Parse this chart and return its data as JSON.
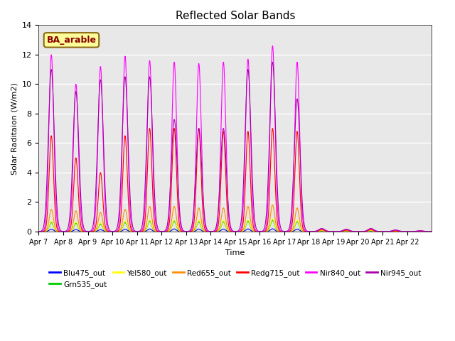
{
  "title": "Reflected Solar Bands",
  "xlabel": "Time",
  "ylabel": "Solar Raditaion (W/m2)",
  "ylim": [
    0,
    14
  ],
  "annotation_text": "BA_arable",
  "annotation_color": "#8B0000",
  "annotation_bg": "#FFFF99",
  "annotation_border": "#8B6914",
  "background_color": "#E8E8E8",
  "series": [
    {
      "label": "Blu475_out",
      "color": "#0000FF"
    },
    {
      "label": "Grn535_out",
      "color": "#00CC00"
    },
    {
      "label": "Yel580_out",
      "color": "#FFFF00"
    },
    {
      "label": "Red655_out",
      "color": "#FF8C00"
    },
    {
      "label": "Redg715_out",
      "color": "#FF0000"
    },
    {
      "label": "Nir840_out",
      "color": "#FF00FF"
    },
    {
      "label": "Nir945_out",
      "color": "#AA00AA"
    }
  ],
  "xtick_positions": [
    0,
    1,
    2,
    3,
    4,
    5,
    6,
    7,
    8,
    9,
    10,
    11,
    12,
    13,
    14,
    15
  ],
  "xtick_labels": [
    "Apr 7",
    "Apr 8",
    "Apr 9",
    "Apr 10",
    "Apr 11",
    "Apr 12",
    "Apr 13",
    "Apr 14",
    "Apr 15",
    "Apr 16",
    "Apr 17",
    "Apr 18",
    "Apr 19",
    "Apr 20",
    "Apr 21",
    "Apr 22"
  ],
  "num_days": 16,
  "points_per_day": 96,
  "nir840_heights": [
    12.0,
    10.0,
    11.2,
    11.9,
    11.6,
    11.5,
    11.4,
    11.5,
    11.7,
    12.6,
    11.5,
    0.2,
    0.15,
    0.2,
    0.1,
    0.05
  ],
  "nir945_heights": [
    11.0,
    9.5,
    10.3,
    10.5,
    10.5,
    7.6,
    7.0,
    7.0,
    11.0,
    11.5,
    9.0,
    0.2,
    0.15,
    0.2,
    0.1,
    0.05
  ],
  "redg715_heights": [
    6.5,
    5.0,
    4.0,
    6.5,
    7.0,
    7.0,
    7.0,
    6.8,
    6.8,
    7.0,
    6.8,
    0.15,
    0.1,
    0.15,
    0.05,
    0.02
  ],
  "red655_heights": [
    1.5,
    1.4,
    1.3,
    1.5,
    1.7,
    1.7,
    1.6,
    1.6,
    1.7,
    1.8,
    1.6,
    0.1,
    0.08,
    0.1,
    0.04,
    0.02
  ],
  "yel580_heights": [
    0.7,
    0.65,
    0.6,
    0.7,
    0.8,
    0.8,
    0.75,
    0.75,
    0.8,
    0.85,
    0.75,
    0.05,
    0.04,
    0.05,
    0.02,
    0.01
  ],
  "grn535_heights": [
    0.6,
    0.55,
    0.5,
    0.6,
    0.7,
    0.7,
    0.65,
    0.65,
    0.7,
    0.75,
    0.65,
    0.04,
    0.03,
    0.04,
    0.02,
    0.01
  ],
  "blu475_heights": [
    0.15,
    0.13,
    0.12,
    0.15,
    0.17,
    0.17,
    0.16,
    0.16,
    0.17,
    0.18,
    0.16,
    0.01,
    0.01,
    0.01,
    0.005,
    0.005
  ]
}
